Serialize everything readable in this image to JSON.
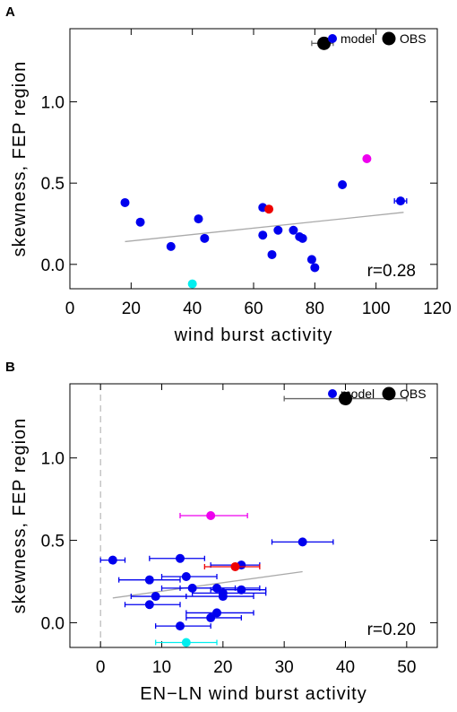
{
  "chart_data": [
    {
      "panel": "A",
      "type": "scatter",
      "xlabel": "wind burst activity",
      "ylabel": "skewness, FEP region",
      "xlim": [
        0,
        120
      ],
      "ylim": [
        -0.15,
        1.45
      ],
      "xticks": [
        0,
        20,
        40,
        60,
        80,
        100,
        120
      ],
      "yticks": [
        0.0,
        0.5,
        1.0
      ],
      "legend": {
        "position": "top-right",
        "entries": [
          {
            "label": "model",
            "color": "#0000ee"
          },
          {
            "label": "OBS",
            "color": "#000000"
          }
        ]
      },
      "annotation": "r=0.28",
      "regression_line": {
        "x": [
          18,
          109
        ],
        "y": [
          0.14,
          0.32
        ],
        "color": "#aaaaaa"
      },
      "series": [
        {
          "name": "model",
          "color": "#0000ee",
          "points": [
            {
              "x": 18,
              "y": 0.38
            },
            {
              "x": 23,
              "y": 0.26
            },
            {
              "x": 33,
              "y": 0.11
            },
            {
              "x": 42,
              "y": 0.28
            },
            {
              "x": 44,
              "y": 0.16
            },
            {
              "x": 63,
              "y": 0.35
            },
            {
              "x": 63,
              "y": 0.18
            },
            {
              "x": 66,
              "y": 0.06
            },
            {
              "x": 68,
              "y": 0.21
            },
            {
              "x": 73,
              "y": 0.21
            },
            {
              "x": 75,
              "y": 0.17
            },
            {
              "x": 76,
              "y": 0.16
            },
            {
              "x": 79,
              "y": 0.03
            },
            {
              "x": 80,
              "y": -0.02
            },
            {
              "x": 89,
              "y": 0.49
            },
            {
              "x": 108,
              "y": 0.39,
              "xerr": [
                106,
                110
              ]
            }
          ]
        },
        {
          "name": "model",
          "color": "#ee0000",
          "points": [
            {
              "x": 65,
              "y": 0.34
            }
          ]
        },
        {
          "name": "model",
          "color": "#ee00ee",
          "points": [
            {
              "x": 97,
              "y": 0.65
            }
          ]
        },
        {
          "name": "model",
          "color": "#00eeee",
          "points": [
            {
              "x": 40,
              "y": -0.12
            }
          ]
        },
        {
          "name": "OBS",
          "color": "#000000",
          "points": [
            {
              "x": 83,
              "y": 1.36,
              "xerr": [
                79,
                86
              ],
              "big": true
            }
          ]
        }
      ]
    },
    {
      "panel": "B",
      "type": "scatter",
      "xlabel": "EN−LN wind burst activity",
      "ylabel": "skewness, FEP region",
      "xlim": [
        -5,
        55
      ],
      "ylim": [
        -0.15,
        1.45
      ],
      "xticks": [
        0,
        10,
        20,
        30,
        40,
        50
      ],
      "yticks": [
        0.0,
        0.5,
        1.0
      ],
      "zero_line_x": 0,
      "legend": {
        "position": "top-right",
        "entries": [
          {
            "label": "model",
            "color": "#0000ee"
          },
          {
            "label": "OBS",
            "color": "#000000"
          }
        ]
      },
      "annotation": "r=0.20",
      "regression_line": {
        "x": [
          2,
          33
        ],
        "y": [
          0.15,
          0.31
        ],
        "color": "#aaaaaa"
      },
      "series": [
        {
          "name": "model",
          "color": "#0000ee",
          "points": [
            {
              "x": 2,
              "y": 0.38,
              "xerr": [
                0,
                4
              ]
            },
            {
              "x": 8,
              "y": 0.26,
              "xerr": [
                3,
                13
              ]
            },
            {
              "x": 8,
              "y": 0.11,
              "xerr": [
                4,
                13
              ]
            },
            {
              "x": 9,
              "y": 0.16,
              "xerr": [
                5,
                14
              ]
            },
            {
              "x": 13,
              "y": 0.39,
              "xerr": [
                8,
                17
              ]
            },
            {
              "x": 14,
              "y": 0.28,
              "xerr": [
                10,
                19
              ]
            },
            {
              "x": 13,
              "y": -0.02,
              "xerr": [
                9,
                18
              ]
            },
            {
              "x": 15,
              "y": 0.21,
              "xerr": [
                10,
                22
              ]
            },
            {
              "x": 18,
              "y": 0.03,
              "xerr": [
                14,
                23
              ]
            },
            {
              "x": 19,
              "y": 0.06,
              "xerr": [
                14,
                25
              ]
            },
            {
              "x": 19,
              "y": 0.21,
              "xerr": [
                13,
                26
              ]
            },
            {
              "x": 20,
              "y": 0.16,
              "xerr": [
                14,
                25
              ]
            },
            {
              "x": 20,
              "y": 0.18,
              "xerr": [
                15,
                27
              ]
            },
            {
              "x": 23,
              "y": 0.35,
              "xerr": [
                18,
                26
              ]
            },
            {
              "x": 23,
              "y": 0.2,
              "xerr": [
                18,
                27
              ]
            },
            {
              "x": 33,
              "y": 0.49,
              "xerr": [
                28,
                38
              ]
            }
          ]
        },
        {
          "name": "model",
          "color": "#ee0000",
          "points": [
            {
              "x": 22,
              "y": 0.34,
              "xerr": [
                17,
                26
              ]
            }
          ]
        },
        {
          "name": "model",
          "color": "#ee00ee",
          "points": [
            {
              "x": 18,
              "y": 0.65,
              "xerr": [
                13,
                24
              ]
            }
          ]
        },
        {
          "name": "model",
          "color": "#00eeee",
          "points": [
            {
              "x": 14,
              "y": -0.12,
              "xerr": [
                9,
                19
              ]
            }
          ]
        },
        {
          "name": "OBS",
          "color": "#000000",
          "points": [
            {
              "x": 40,
              "y": 1.36,
              "xerr": [
                30,
                50
              ],
              "big": true
            }
          ]
        }
      ]
    }
  ]
}
